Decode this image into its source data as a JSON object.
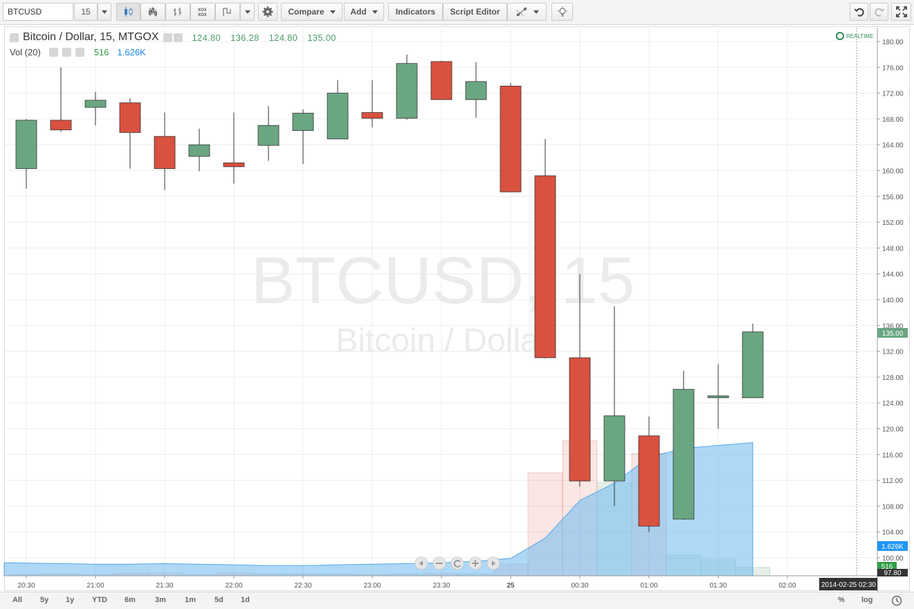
{
  "toolbar": {
    "symbol": "BTCUSD",
    "interval": "15",
    "compare_label": "Compare",
    "add_label": "Add",
    "indicators_label": "Indicators",
    "script_editor_label": "Script Editor"
  },
  "legend": {
    "title": "Bitcoin / Dollar, 15, MTGOX",
    "open": "124.80",
    "high": "136.28",
    "low": "124.80",
    "close": "135.00",
    "vol_label": "Vol (20)",
    "vol_value": "516",
    "vol_ma": "1.626K",
    "realtime": "REALTIME"
  },
  "watermark": {
    "symbol": "BTCUSD, 15",
    "name": "Bitcoin / Dollar"
  },
  "price_badges": {
    "last": "135.00",
    "vol_ma": "1.626K",
    "vol": "516",
    "low_mark": "97.80"
  },
  "date_badge": "2014-02-25 02:30",
  "bottom": {
    "ranges": [
      "All",
      "5y",
      "1y",
      "YTD",
      "6m",
      "3m",
      "1m",
      "5d",
      "1d"
    ],
    "percent": "%",
    "log": "log"
  },
  "colors": {
    "up": "#6aa681",
    "down": "#d9513f",
    "grid": "#ececec"
  },
  "chart_data": {
    "type": "candlestick",
    "title": "Bitcoin / Dollar, 15, MTGOX",
    "ylim": [
      96,
      182
    ],
    "yticks": [
      100,
      104,
      108,
      112,
      116,
      120,
      124,
      128,
      132,
      136,
      140,
      144,
      148,
      152,
      156,
      160,
      164,
      168,
      172,
      176,
      180
    ],
    "xlabels": [
      "20:30",
      "21:00",
      "21:30",
      "22:00",
      "22:30",
      "23:00",
      "23:30",
      "25",
      "00:30",
      "01:00",
      "01:30",
      "02:00"
    ],
    "candles": [
      {
        "o": 160.3,
        "h": 168.0,
        "l": 157.2,
        "c": 167.8,
        "v": 0.25
      },
      {
        "o": 167.8,
        "h": 176.0,
        "l": 166.0,
        "c": 166.3,
        "v": 0.3
      },
      {
        "o": 169.8,
        "h": 172.2,
        "l": 167.0,
        "c": 170.9,
        "v": 0.2
      },
      {
        "o": 170.5,
        "h": 171.2,
        "l": 160.3,
        "c": 165.9,
        "v": 0.35
      },
      {
        "o": 165.3,
        "h": 169.0,
        "l": 157.0,
        "c": 160.3,
        "v": 0.4
      },
      {
        "o": 162.2,
        "h": 166.5,
        "l": 159.9,
        "c": 164.0,
        "v": 0.2
      },
      {
        "o": 161.2,
        "h": 169.0,
        "l": 158.0,
        "c": 160.6,
        "v": 0.45
      },
      {
        "o": 163.9,
        "h": 170.0,
        "l": 161.5,
        "c": 167.0,
        "v": 0.3
      },
      {
        "o": 166.2,
        "h": 169.5,
        "l": 161.0,
        "c": 168.9,
        "v": 0.3
      },
      {
        "o": 164.9,
        "h": 174.0,
        "l": 164.9,
        "c": 172.0,
        "v": 0.3
      },
      {
        "o": 169.0,
        "h": 174.0,
        "l": 166.7,
        "c": 168.1,
        "v": 0.2
      },
      {
        "o": 168.1,
        "h": 178.0,
        "l": 167.9,
        "c": 176.6,
        "v": 0.3
      },
      {
        "o": 176.9,
        "h": 177.0,
        "l": 171.0,
        "c": 171.0,
        "v": 0.35
      },
      {
        "o": 171.0,
        "h": 176.8,
        "l": 168.2,
        "c": 173.8,
        "v": 0.3
      },
      {
        "o": 173.1,
        "h": 173.6,
        "l": 156.7,
        "c": 156.7,
        "v": 1.8
      },
      {
        "o": 159.2,
        "h": 164.9,
        "l": 130.9,
        "c": 131.0,
        "v": 16.0
      },
      {
        "o": 131.0,
        "h": 144.0,
        "l": 111.0,
        "c": 111.9,
        "v": 21.0
      },
      {
        "o": 111.9,
        "h": 139.0,
        "l": 108.0,
        "c": 122.0,
        "v": 14.5
      },
      {
        "o": 118.9,
        "h": 121.9,
        "l": 104.0,
        "c": 104.9,
        "v": 19.0
      },
      {
        "o": 106.0,
        "h": 129.0,
        "l": 105.9,
        "c": 126.1,
        "v": 3.2
      },
      {
        "o": 124.8,
        "h": 130.0,
        "l": 120.0,
        "c": 125.1,
        "v": 2.5
      },
      {
        "o": 124.8,
        "h": 136.28,
        "l": 124.8,
        "c": 135.0,
        "v": 1.3
      }
    ],
    "volume_ma": [
      0.45,
      0.42,
      0.4,
      0.4,
      0.42,
      0.4,
      0.38,
      0.35,
      0.35,
      0.38,
      0.4,
      0.42,
      0.45,
      0.5,
      0.6,
      1.3,
      2.6,
      3.2,
      4.1,
      4.4,
      4.5,
      4.6
    ]
  }
}
